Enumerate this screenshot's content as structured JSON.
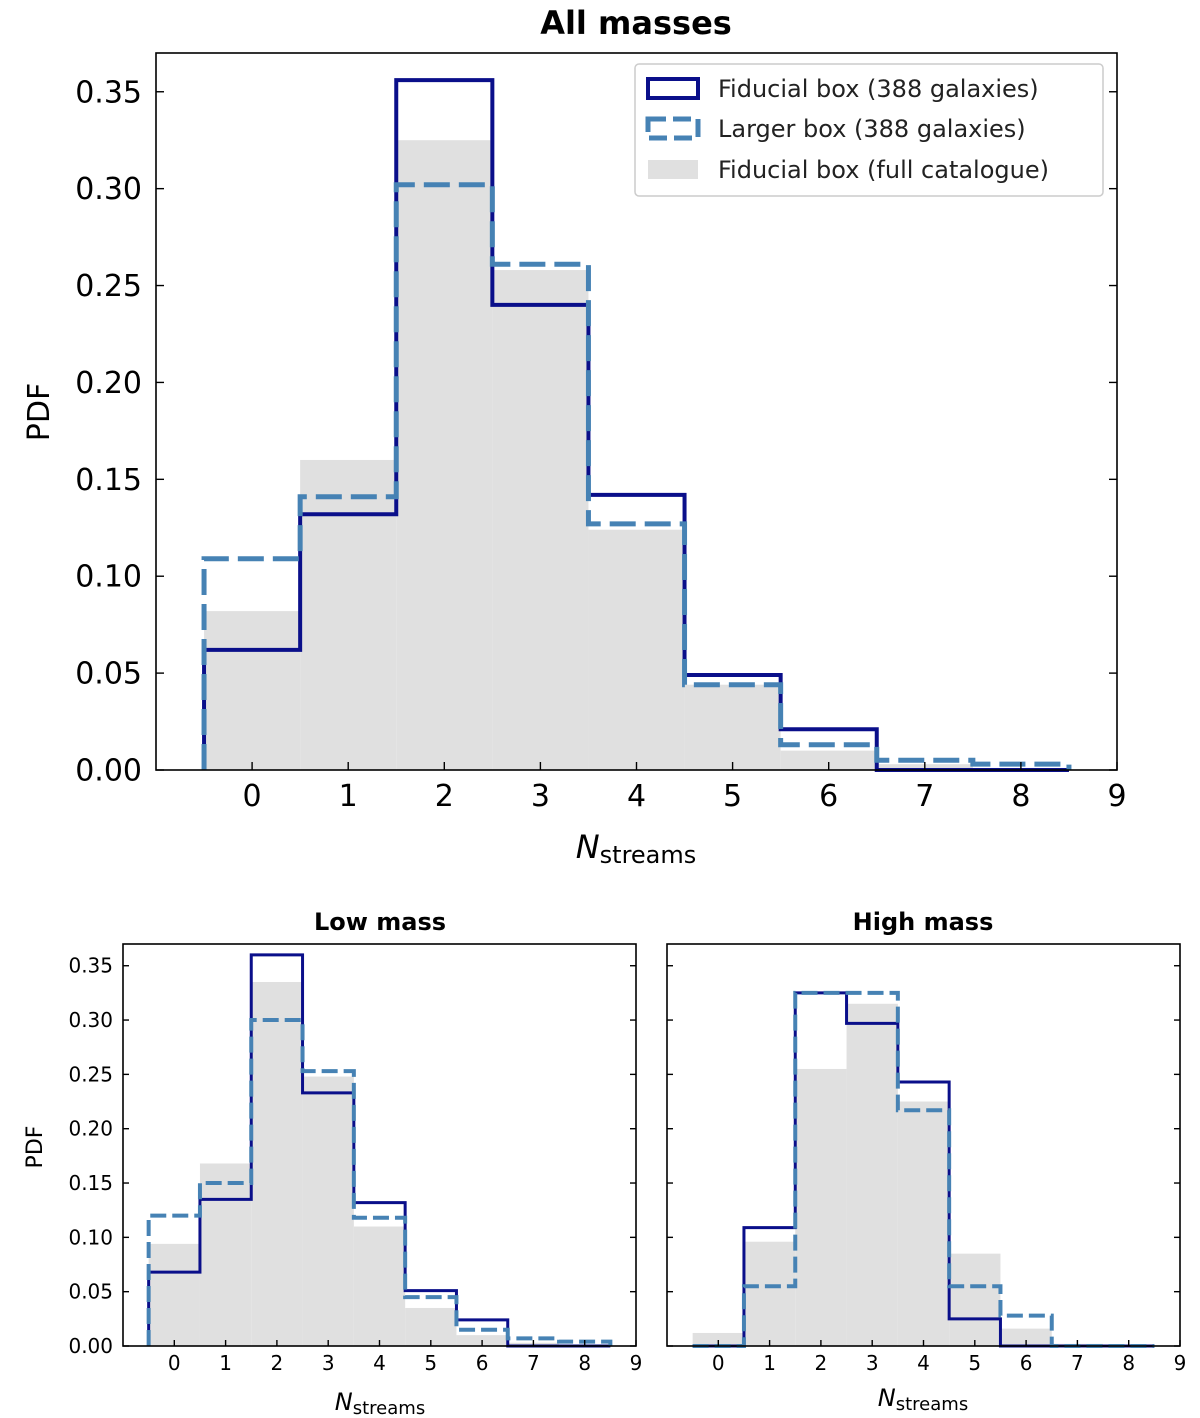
{
  "colors": {
    "fiducial": "#0a0f8a",
    "larger": "#4682b4",
    "full": "#e0e0e0",
    "frame": "#000000",
    "legend_border": "#cccccc"
  },
  "legend": {
    "fiducial": "Fiducial box (388 galaxies)",
    "larger": "Larger box (388 galaxies)",
    "full": "Fiducial box (full catalogue)"
  },
  "chart_data": [
    {
      "id": "top",
      "type": "histogram",
      "title": "All masses",
      "xlabel_main": "N",
      "xlabel_sub": "streams",
      "ylabel": "PDF",
      "xlim": [
        -1,
        9
      ],
      "ylim": [
        0,
        0.37
      ],
      "bin_edges": [
        -0.5,
        0.5,
        1.5,
        2.5,
        3.5,
        4.5,
        5.5,
        6.5,
        7.5,
        8.5
      ],
      "x_ticks": [
        0,
        1,
        2,
        3,
        4,
        5,
        6,
        7,
        8,
        9
      ],
      "y_ticks": [
        0.0,
        0.05,
        0.1,
        0.15,
        0.2,
        0.25,
        0.3,
        0.35
      ],
      "legend_position": "top-right",
      "series": [
        {
          "key": "full",
          "name": "Fiducial box (full catalogue)",
          "style": "filled",
          "values": [
            0.082,
            0.16,
            0.325,
            0.258,
            0.124,
            0.044,
            0.01,
            0.003,
            0.001
          ]
        },
        {
          "key": "fiducial",
          "name": "Fiducial box (388 galaxies)",
          "style": "step-solid",
          "values": [
            0.062,
            0.132,
            0.356,
            0.24,
            0.142,
            0.049,
            0.021,
            0.0,
            0.0
          ]
        },
        {
          "key": "larger",
          "name": "Larger box (388 galaxies)",
          "style": "step-dashed",
          "values": [
            0.109,
            0.141,
            0.302,
            0.261,
            0.127,
            0.044,
            0.013,
            0.005,
            0.003
          ]
        }
      ]
    },
    {
      "id": "low",
      "type": "histogram",
      "title": "Low mass",
      "xlabel_main": "N",
      "xlabel_sub": "streams",
      "ylabel": "PDF",
      "xlim": [
        -1,
        9
      ],
      "ylim": [
        0,
        0.37
      ],
      "bin_edges": [
        -0.5,
        0.5,
        1.5,
        2.5,
        3.5,
        4.5,
        5.5,
        6.5,
        7.5,
        8.5
      ],
      "x_ticks": [
        0,
        1,
        2,
        3,
        4,
        5,
        6,
        7,
        8,
        9
      ],
      "y_ticks": [
        0.0,
        0.05,
        0.1,
        0.15,
        0.2,
        0.25,
        0.3,
        0.35
      ],
      "series": [
        {
          "key": "full",
          "style": "filled",
          "values": [
            0.094,
            0.168,
            0.335,
            0.248,
            0.11,
            0.035,
            0.01,
            0.003,
            0.001
          ]
        },
        {
          "key": "fiducial",
          "style": "step-solid",
          "values": [
            0.068,
            0.135,
            0.36,
            0.233,
            0.132,
            0.051,
            0.024,
            0.0,
            0.0
          ]
        },
        {
          "key": "larger",
          "style": "step-dashed",
          "values": [
            0.12,
            0.15,
            0.3,
            0.253,
            0.118,
            0.045,
            0.015,
            0.007,
            0.004
          ]
        }
      ]
    },
    {
      "id": "high",
      "type": "histogram",
      "title": "High mass",
      "xlabel_main": "N",
      "xlabel_sub": "streams",
      "ylabel": "",
      "xlim": [
        -1,
        9
      ],
      "ylim": [
        0,
        0.37
      ],
      "bin_edges": [
        -0.5,
        0.5,
        1.5,
        2.5,
        3.5,
        4.5,
        5.5,
        6.5,
        7.5,
        8.5
      ],
      "x_ticks": [
        0,
        1,
        2,
        3,
        4,
        5,
        6,
        7,
        8,
        9
      ],
      "y_ticks": [
        0.0,
        0.05,
        0.1,
        0.15,
        0.2,
        0.25,
        0.3,
        0.35
      ],
      "series": [
        {
          "key": "full",
          "style": "filled",
          "values": [
            0.012,
            0.096,
            0.255,
            0.315,
            0.225,
            0.085,
            0.016,
            0.002,
            0.001
          ]
        },
        {
          "key": "fiducial",
          "style": "step-solid",
          "values": [
            0.0,
            0.109,
            0.325,
            0.297,
            0.243,
            0.025,
            0.0,
            0.0,
            0.0
          ]
        },
        {
          "key": "larger",
          "style": "step-dashed",
          "values": [
            0.0,
            0.055,
            0.325,
            0.325,
            0.217,
            0.055,
            0.028,
            0.0,
            0.0
          ]
        }
      ]
    }
  ]
}
